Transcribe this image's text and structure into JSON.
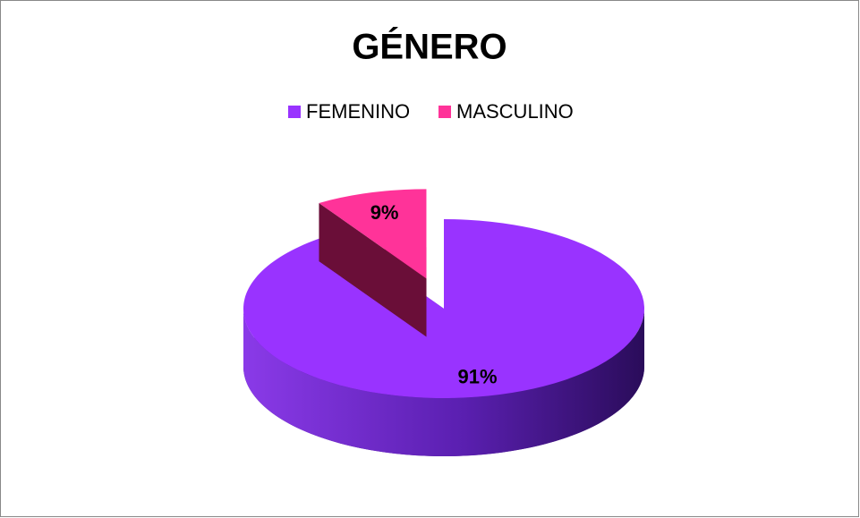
{
  "chart_data": {
    "type": "pie",
    "title": "GÉNERO",
    "categories": [
      "FEMENINO",
      "MASCULINO"
    ],
    "values": [
      91,
      9
    ],
    "value_labels": [
      "91%",
      "9%"
    ],
    "colors": [
      "#9933ff",
      "#ff3399"
    ],
    "legend": "top"
  }
}
